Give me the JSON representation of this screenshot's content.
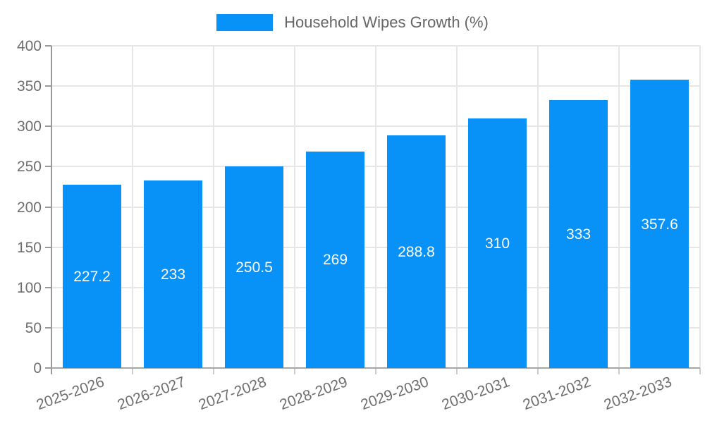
{
  "legend": {
    "label": "Household Wipes Growth (%)"
  },
  "colors": {
    "bar": "#0892f8",
    "grid": "#e6e6e6",
    "axis": "#999999",
    "axis_text": "#6e6e6e",
    "legend_text": "#666666",
    "bar_label_text": "#ffffff",
    "background": "#ffffff"
  },
  "chart_data": {
    "type": "bar",
    "title": "",
    "xlabel": "",
    "ylabel": "",
    "categories": [
      "2025-2026",
      "2026-2027",
      "2027-2028",
      "2028-2029",
      "2029-2030",
      "2030-2031",
      "2031-2032",
      "2032-2033"
    ],
    "series": [
      {
        "name": "Household Wipes Growth (%)",
        "values": [
          227.2,
          233,
          250.5,
          269,
          288.8,
          310,
          333,
          357.6
        ],
        "value_labels": [
          "227.2",
          "233",
          "250.5",
          "269",
          "288.8",
          "310",
          "333",
          "357.6"
        ],
        "color": "#0892f8"
      }
    ],
    "ylim": [
      0,
      400
    ],
    "yticks": [
      0,
      50,
      100,
      150,
      200,
      250,
      300,
      350,
      400
    ],
    "grid": true,
    "legend_position": "top-center",
    "value_labels_position": "inside-center",
    "xtick_rotation_deg": -20
  }
}
